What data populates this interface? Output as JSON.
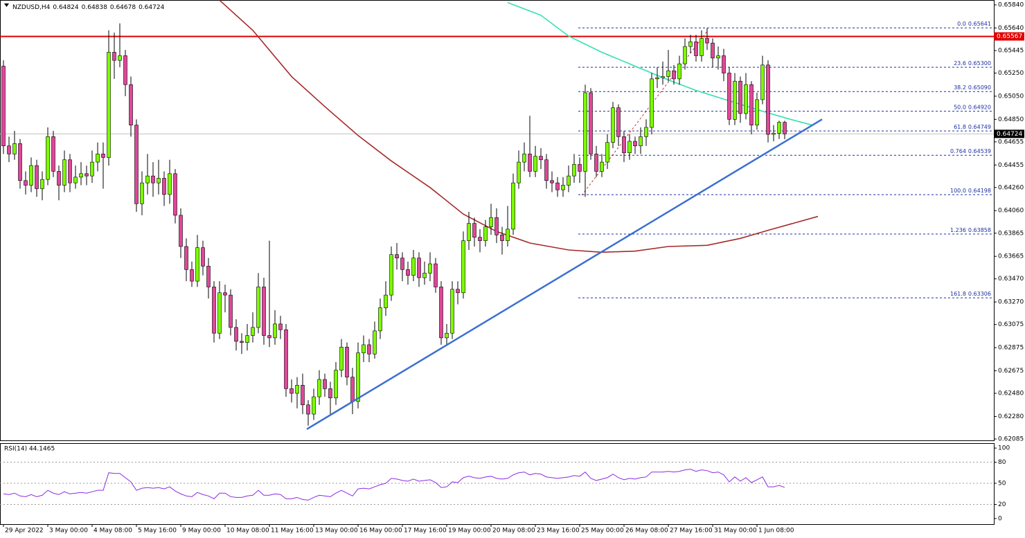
{
  "chart_data": {
    "type": "candlestick",
    "header": {
      "symbol": "NZDUSD,H4",
      "values": [
        0.64824,
        0.64838,
        0.64678,
        0.64724
      ]
    },
    "categories": [
      "29 Apr 2022",
      null,
      null,
      null,
      null,
      null,
      null,
      null,
      "3 May 00:00",
      null,
      null,
      null,
      null,
      null,
      null,
      null,
      "4 May 08:00",
      null,
      null,
      null,
      null,
      null,
      null,
      null,
      "5 May 16:00",
      null,
      null,
      null,
      null,
      null,
      null,
      null,
      "9 May 00:00",
      null,
      null,
      null,
      null,
      null,
      null,
      null,
      "10 May 08:00",
      null,
      null,
      null,
      null,
      null,
      null,
      null,
      "11 May 16:00",
      null,
      null,
      null,
      null,
      null,
      null,
      null,
      "13 May 00:00",
      null,
      null,
      null,
      null,
      null,
      null,
      null,
      "16 May 00:00",
      null,
      null,
      null,
      null,
      null,
      null,
      null,
      "17 May 16:00",
      null,
      null,
      null,
      null,
      null,
      null,
      null,
      "19 May 00:00",
      null,
      null,
      null,
      null,
      null,
      null,
      null,
      "20 May 08:00",
      null,
      null,
      null,
      null,
      null,
      null,
      null,
      "23 May 16:00",
      null,
      null,
      null,
      null,
      null,
      null,
      null,
      "25 May 00:00",
      null,
      null,
      null,
      null,
      null,
      null,
      null,
      "26 May 08:00",
      null,
      null,
      null,
      null,
      null,
      null,
      null,
      "27 May 16:00",
      null,
      null,
      null,
      null,
      null,
      null,
      null,
      "31 May 00:00",
      null,
      null,
      null,
      null,
      null,
      null,
      null,
      "1 Jun 08:00",
      null,
      null,
      null,
      null,
      null
    ],
    "candles": [
      [
        0.6531,
        0.6536,
        0.6455,
        0.6462
      ],
      [
        0.6462,
        0.647,
        0.6448,
        0.6455
      ],
      [
        0.6455,
        0.6475,
        0.645,
        0.6464
      ],
      [
        0.6464,
        0.6468,
        0.6425,
        0.6432
      ],
      [
        0.6432,
        0.644,
        0.642,
        0.6428
      ],
      [
        0.6428,
        0.6452,
        0.6422,
        0.6445
      ],
      [
        0.6445,
        0.645,
        0.6418,
        0.6425
      ],
      [
        0.6425,
        0.644,
        0.6415,
        0.6433
      ],
      [
        0.6433,
        0.6478,
        0.6428,
        0.647
      ],
      [
        0.647,
        0.6475,
        0.6435,
        0.644
      ],
      [
        0.644,
        0.6445,
        0.6415,
        0.6428
      ],
      [
        0.6428,
        0.6458,
        0.6422,
        0.645
      ],
      [
        0.645,
        0.6455,
        0.6422,
        0.643
      ],
      [
        0.643,
        0.6445,
        0.6425,
        0.6435
      ],
      [
        0.6435,
        0.6448,
        0.6428,
        0.6438
      ],
      [
        0.6438,
        0.6445,
        0.6428,
        0.6436
      ],
      [
        0.6436,
        0.6458,
        0.643,
        0.6448
      ],
      [
        0.6448,
        0.6465,
        0.644,
        0.6455
      ],
      [
        0.6455,
        0.6465,
        0.6425,
        0.6452
      ],
      [
        0.6452,
        0.6562,
        0.6445,
        0.6543
      ],
      [
        0.6543,
        0.656,
        0.652,
        0.6536
      ],
      [
        0.6536,
        0.6568,
        0.653,
        0.654
      ],
      [
        0.654,
        0.6545,
        0.6505,
        0.6515
      ],
      [
        0.6515,
        0.6522,
        0.647,
        0.648
      ],
      [
        0.648,
        0.6485,
        0.6405,
        0.6412
      ],
      [
        0.6412,
        0.644,
        0.6402,
        0.643
      ],
      [
        0.643,
        0.6455,
        0.642,
        0.6436
      ],
      [
        0.6436,
        0.6448,
        0.6418,
        0.643
      ],
      [
        0.643,
        0.645,
        0.642,
        0.6434
      ],
      [
        0.6434,
        0.644,
        0.641,
        0.642
      ],
      [
        0.642,
        0.645,
        0.6412,
        0.6438
      ],
      [
        0.6438,
        0.6442,
        0.6395,
        0.6402
      ],
      [
        0.6402,
        0.6408,
        0.6365,
        0.6375
      ],
      [
        0.6375,
        0.6382,
        0.6345,
        0.6355
      ],
      [
        0.6355,
        0.6362,
        0.634,
        0.6345
      ],
      [
        0.6345,
        0.6385,
        0.634,
        0.6374
      ],
      [
        0.6374,
        0.638,
        0.635,
        0.6358
      ],
      [
        0.6358,
        0.6365,
        0.633,
        0.634
      ],
      [
        0.634,
        0.6345,
        0.6292,
        0.63
      ],
      [
        0.63,
        0.6345,
        0.6295,
        0.6335
      ],
      [
        0.6335,
        0.6342,
        0.6318,
        0.6333
      ],
      [
        0.6333,
        0.6338,
        0.6298,
        0.6305
      ],
      [
        0.6305,
        0.6312,
        0.6285,
        0.6293
      ],
      [
        0.6293,
        0.63,
        0.6282,
        0.6292
      ],
      [
        0.6292,
        0.6308,
        0.6285,
        0.6298
      ],
      [
        0.6298,
        0.6318,
        0.6292,
        0.6305
      ],
      [
        0.6305,
        0.6352,
        0.63,
        0.634
      ],
      [
        0.634,
        0.6348,
        0.629,
        0.6298
      ],
      [
        0.6298,
        0.638,
        0.6288,
        0.6296
      ],
      [
        0.6296,
        0.632,
        0.629,
        0.6308
      ],
      [
        0.6308,
        0.6315,
        0.6295,
        0.6303
      ],
      [
        0.6303,
        0.6308,
        0.6245,
        0.6252
      ],
      [
        0.6252,
        0.626,
        0.624,
        0.6248
      ],
      [
        0.6248,
        0.6262,
        0.6235,
        0.6255
      ],
      [
        0.6255,
        0.6265,
        0.623,
        0.6238
      ],
      [
        0.6238,
        0.6242,
        0.622,
        0.623
      ],
      [
        0.623,
        0.6252,
        0.6225,
        0.6245
      ],
      [
        0.6245,
        0.6268,
        0.6238,
        0.626
      ],
      [
        0.626,
        0.6265,
        0.6245,
        0.6252
      ],
      [
        0.6252,
        0.6258,
        0.623,
        0.6244
      ],
      [
        0.6244,
        0.6275,
        0.6238,
        0.6268
      ],
      [
        0.6268,
        0.6295,
        0.6262,
        0.6288
      ],
      [
        0.6288,
        0.6292,
        0.6255,
        0.6262
      ],
      [
        0.6262,
        0.627,
        0.623,
        0.6241
      ],
      [
        0.6241,
        0.6292,
        0.6235,
        0.6283
      ],
      [
        0.6283,
        0.6298,
        0.6275,
        0.629
      ],
      [
        0.629,
        0.6295,
        0.6275,
        0.6282
      ],
      [
        0.6282,
        0.631,
        0.6278,
        0.6302
      ],
      [
        0.6302,
        0.633,
        0.6295,
        0.6322
      ],
      [
        0.6322,
        0.6345,
        0.6315,
        0.6333
      ],
      [
        0.6333,
        0.6375,
        0.6328,
        0.6368
      ],
      [
        0.6368,
        0.6378,
        0.6355,
        0.6365
      ],
      [
        0.6365,
        0.637,
        0.6345,
        0.6355
      ],
      [
        0.6355,
        0.6362,
        0.6342,
        0.635
      ],
      [
        0.635,
        0.6372,
        0.6345,
        0.6365
      ],
      [
        0.6365,
        0.637,
        0.634,
        0.6348
      ],
      [
        0.6348,
        0.6362,
        0.6342,
        0.6352
      ],
      [
        0.6352,
        0.637,
        0.6345,
        0.636
      ],
      [
        0.636,
        0.6365,
        0.6335,
        0.634
      ],
      [
        0.634,
        0.6345,
        0.629,
        0.6296
      ],
      [
        0.6296,
        0.6308,
        0.629,
        0.63
      ],
      [
        0.63,
        0.6345,
        0.6295,
        0.6338
      ],
      [
        0.6338,
        0.6345,
        0.6325,
        0.6335
      ],
      [
        0.6335,
        0.6388,
        0.633,
        0.638
      ],
      [
        0.638,
        0.6405,
        0.6372,
        0.6395
      ],
      [
        0.6395,
        0.64,
        0.6375,
        0.6383
      ],
      [
        0.6383,
        0.639,
        0.637,
        0.638
      ],
      [
        0.638,
        0.6398,
        0.6375,
        0.6392
      ],
      [
        0.6392,
        0.6412,
        0.6385,
        0.64
      ],
      [
        0.64,
        0.6408,
        0.6378,
        0.6385
      ],
      [
        0.6385,
        0.6392,
        0.6368,
        0.638
      ],
      [
        0.638,
        0.641,
        0.6375,
        0.639
      ],
      [
        0.639,
        0.6438,
        0.6385,
        0.643
      ],
      [
        0.643,
        0.6458,
        0.6425,
        0.6448
      ],
      [
        0.6448,
        0.6465,
        0.644,
        0.6455
      ],
      [
        0.6455,
        0.6488,
        0.6435,
        0.644
      ],
      [
        0.644,
        0.6462,
        0.6435,
        0.6453
      ],
      [
        0.6453,
        0.646,
        0.6442,
        0.645
      ],
      [
        0.645,
        0.6455,
        0.6425,
        0.6432
      ],
      [
        0.6432,
        0.644,
        0.6422,
        0.643
      ],
      [
        0.643,
        0.6435,
        0.6418,
        0.6424
      ],
      [
        0.6424,
        0.6435,
        0.6418,
        0.6428
      ],
      [
        0.6428,
        0.6445,
        0.6422,
        0.6436
      ],
      [
        0.6436,
        0.6455,
        0.643,
        0.6446
      ],
      [
        0.6446,
        0.6452,
        0.643,
        0.644
      ],
      [
        0.644,
        0.6515,
        0.6418,
        0.6508
      ],
      [
        0.6508,
        0.6512,
        0.645,
        0.6455
      ],
      [
        0.6455,
        0.6462,
        0.6435,
        0.644
      ],
      [
        0.644,
        0.6455,
        0.6435,
        0.6448
      ],
      [
        0.6448,
        0.6472,
        0.6442,
        0.6465
      ],
      [
        0.6465,
        0.65,
        0.646,
        0.6495
      ],
      [
        0.6495,
        0.6498,
        0.6462,
        0.647
      ],
      [
        0.647,
        0.6475,
        0.6448,
        0.6456
      ],
      [
        0.6456,
        0.6472,
        0.645,
        0.6466
      ],
      [
        0.6466,
        0.647,
        0.6455,
        0.6462
      ],
      [
        0.6462,
        0.6478,
        0.6455,
        0.647
      ],
      [
        0.647,
        0.6485,
        0.6462,
        0.6478
      ],
      [
        0.6478,
        0.6525,
        0.6472,
        0.652
      ],
      [
        0.652,
        0.653,
        0.6512,
        0.6521
      ],
      [
        0.6521,
        0.6535,
        0.6515,
        0.6522
      ],
      [
        0.6522,
        0.6545,
        0.6518,
        0.6527
      ],
      [
        0.6527,
        0.6532,
        0.6515,
        0.652
      ],
      [
        0.652,
        0.654,
        0.6515,
        0.6533
      ],
      [
        0.6533,
        0.6555,
        0.6528,
        0.6548
      ],
      [
        0.6548,
        0.6558,
        0.6542,
        0.6552
      ],
      [
        0.6552,
        0.6558,
        0.6535,
        0.654
      ],
      [
        0.654,
        0.6562,
        0.6535,
        0.6555
      ],
      [
        0.6555,
        0.6564,
        0.6545,
        0.6551
      ],
      [
        0.6551,
        0.6555,
        0.653,
        0.6538
      ],
      [
        0.6538,
        0.6548,
        0.6528,
        0.654
      ],
      [
        0.654,
        0.6546,
        0.6518,
        0.6525
      ],
      [
        0.6525,
        0.653,
        0.648,
        0.6485
      ],
      [
        0.6485,
        0.6525,
        0.648,
        0.6518
      ],
      [
        0.6518,
        0.6522,
        0.6482,
        0.649
      ],
      [
        0.649,
        0.6525,
        0.6485,
        0.6515
      ],
      [
        0.6515,
        0.6518,
        0.6472,
        0.648
      ],
      [
        0.648,
        0.6508,
        0.6476,
        0.6502
      ],
      [
        0.6502,
        0.654,
        0.6498,
        0.6532
      ],
      [
        0.6532,
        0.6536,
        0.6465,
        0.6472
      ],
      [
        0.6472,
        0.648,
        0.6466,
        0.6473
      ],
      [
        0.6473,
        0.64838,
        0.6468,
        0.64824
      ],
      [
        0.64824,
        0.64838,
        0.64678,
        0.64724
      ]
    ],
    "colors": {
      "up": "#7cfc00",
      "down": "#e0479a",
      "wick": "#000000"
    },
    "ylim": [
      0.62073,
      0.65882
    ],
    "yticks": [
      {
        "value": 0.6584,
        "label": "0.65840"
      },
      {
        "value": 0.6564,
        "label": "0.65640"
      },
      0.65445,
      {
        "value": 0.6525,
        "label": "0.65250"
      },
      {
        "value": 0.6505,
        "label": "0.65050"
      },
      {
        "value": 0.6485,
        "label": "0.64850"
      },
      0.64655,
      0.64455,
      {
        "value": 0.6426,
        "label": "0.64260"
      },
      {
        "value": 0.6406,
        "label": "0.64060"
      },
      0.63865,
      0.63665,
      {
        "value": 0.6347,
        "label": "0.63470"
      },
      {
        "value": 0.6327,
        "label": "0.63270"
      },
      0.63075,
      0.62875,
      0.62675,
      {
        "value": 0.6248,
        "label": "0.62480"
      },
      {
        "value": 0.6228,
        "label": "0.62280"
      },
      0.62085
    ],
    "overlays": [
      {
        "color": "#a52a2a",
        "x": [
          39,
          45,
          52,
          58,
          64,
          70,
          77,
          83,
          89,
          95,
          102,
          108,
          114,
          120,
          127,
          133,
          138,
          147
        ],
        "values": [
          0.6588,
          0.6562,
          0.6522,
          0.6496,
          0.6471,
          0.6449,
          0.6426,
          0.6403,
          0.6388,
          0.6378,
          0.6372,
          0.637,
          0.6371,
          0.6375,
          0.6376,
          0.6382,
          0.6389,
          0.6401
        ]
      },
      {
        "color": "#33e0b0",
        "x": [
          91,
          97,
          102,
          108,
          114,
          120,
          125,
          131,
          137,
          142,
          146
        ],
        "values": [
          0.6586,
          0.6575,
          0.6557,
          0.6543,
          0.6531,
          0.6519,
          0.651,
          0.6501,
          0.6492,
          0.6485,
          0.648
        ]
      }
    ],
    "trendline": {
      "color": "#3a6fd0",
      "x": [
        54.75,
        147.75
      ],
      "values": [
        0.6217,
        0.6485
      ]
    },
    "resistance": {
      "value": 0.65567,
      "color": "#e00000"
    },
    "current_price": 0.64724,
    "fibonacci": {
      "color": "#1c2fa0",
      "x": 103.75,
      "levels": [
        {
          "ratio": "0.0",
          "value": 0.65641,
          "label": "0.65641"
        },
        {
          "ratio": "23.6",
          "value": 0.653,
          "label": "0.65300"
        },
        {
          "ratio": "38.2",
          "value": 0.6509,
          "label": "0.65090"
        },
        {
          "ratio": "50.0",
          "value": 0.6492,
          "label": "0.64920"
        },
        {
          "ratio": "61.8",
          "value": 0.64749,
          "label": "0.64749"
        },
        {
          "ratio": "0.764",
          "value": 0.64539,
          "label": "0.64539"
        },
        {
          "ratio": "100.0",
          "value": 0.64198,
          "label": "0.64198"
        },
        {
          "ratio": "1.236",
          "value": 0.63858,
          "label": "0.63858"
        },
        {
          "ratio": "161.8",
          "value": 0.63306,
          "label": "0.63306"
        }
      ]
    },
    "rsi": {
      "title": "RSI(14) 44.1465",
      "color": "#8a2be2",
      "ylim": [
        -8,
        107
      ],
      "yticks": [
        100,
        80,
        50,
        20,
        0
      ],
      "levels": [
        80,
        50,
        20
      ],
      "values": [
        35,
        34,
        36,
        32,
        31,
        34,
        31,
        33,
        40,
        36,
        34,
        38,
        35,
        36,
        37,
        36,
        38,
        40,
        40,
        65,
        64,
        64,
        58,
        52,
        40,
        43,
        44,
        43,
        44,
        42,
        45,
        39,
        35,
        32,
        31,
        37,
        34,
        32,
        28,
        36,
        36,
        31,
        30,
        30,
        32,
        33,
        40,
        33,
        33,
        35,
        34,
        28,
        28,
        30,
        27,
        26,
        30,
        33,
        32,
        31,
        36,
        40,
        36,
        32,
        42,
        43,
        42,
        45,
        48,
        50,
        57,
        56,
        54,
        53,
        56,
        53,
        54,
        55,
        51,
        44,
        45,
        52,
        51,
        58,
        60,
        58,
        57,
        59,
        60,
        57,
        56,
        57,
        62,
        65,
        66,
        62,
        64,
        63,
        59,
        58,
        57,
        58,
        59,
        61,
        60,
        66,
        57,
        54,
        56,
        58,
        63,
        58,
        55,
        57,
        56,
        58,
        59,
        66,
        66,
        66,
        67,
        66,
        67,
        69,
        70,
        67,
        69,
        68,
        65,
        66,
        62,
        52,
        59,
        53,
        58,
        51,
        55,
        59,
        45,
        45,
        47,
        44.1465
      ]
    }
  }
}
